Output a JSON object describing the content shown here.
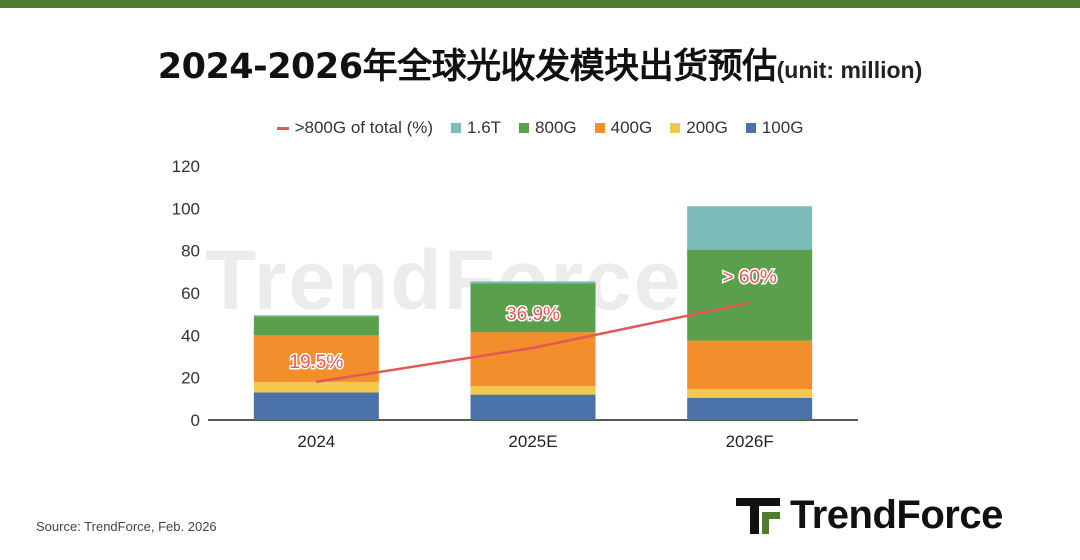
{
  "title": "2024-2026年全球光收发模块出货预估",
  "unit": "(unit: million)",
  "watermark": "TrendForce",
  "source": "Source: TrendForce, Feb. 2026",
  "brand": "TrendForce",
  "colors": {
    "100G": "#4a72a8",
    "200G": "#f2c94c",
    "400G": "#f28e2b",
    "800G": "#5aa04c",
    "1.6T": "#7bbcb8",
    "line": "#e05a5a",
    "bar_green": "#4e7c2e"
  },
  "chart_data": {
    "type": "bar",
    "stacked": true,
    "categories": [
      "2024",
      "2025E",
      "2026F"
    ],
    "series": [
      {
        "name": "100G",
        "values": [
          13,
          12,
          10.5
        ]
      },
      {
        "name": "200G",
        "values": [
          5,
          4,
          4
        ]
      },
      {
        "name": "400G",
        "values": [
          22,
          25.5,
          23
        ]
      },
      {
        "name": "800G",
        "values": [
          9,
          23,
          43
        ]
      },
      {
        "name": "1.6T",
        "values": [
          0.5,
          1,
          20.5
        ]
      }
    ],
    "line_series": {
      "name": ">800G of total (%)",
      "values": [
        19.5,
        36.9,
        60
      ],
      "labels": [
        "19.5%",
        "36.9%",
        "> 60%"
      ]
    },
    "legend": [
      ">800G of total (%)",
      "1.6T",
      "800G",
      "400G",
      "200G",
      "100G"
    ],
    "ylim": [
      0,
      120
    ],
    "yticks": [
      0,
      20,
      40,
      60,
      80,
      100,
      120
    ],
    "line_ylim": [
      0,
      130
    ],
    "grid": false,
    "legend_position": "top"
  }
}
